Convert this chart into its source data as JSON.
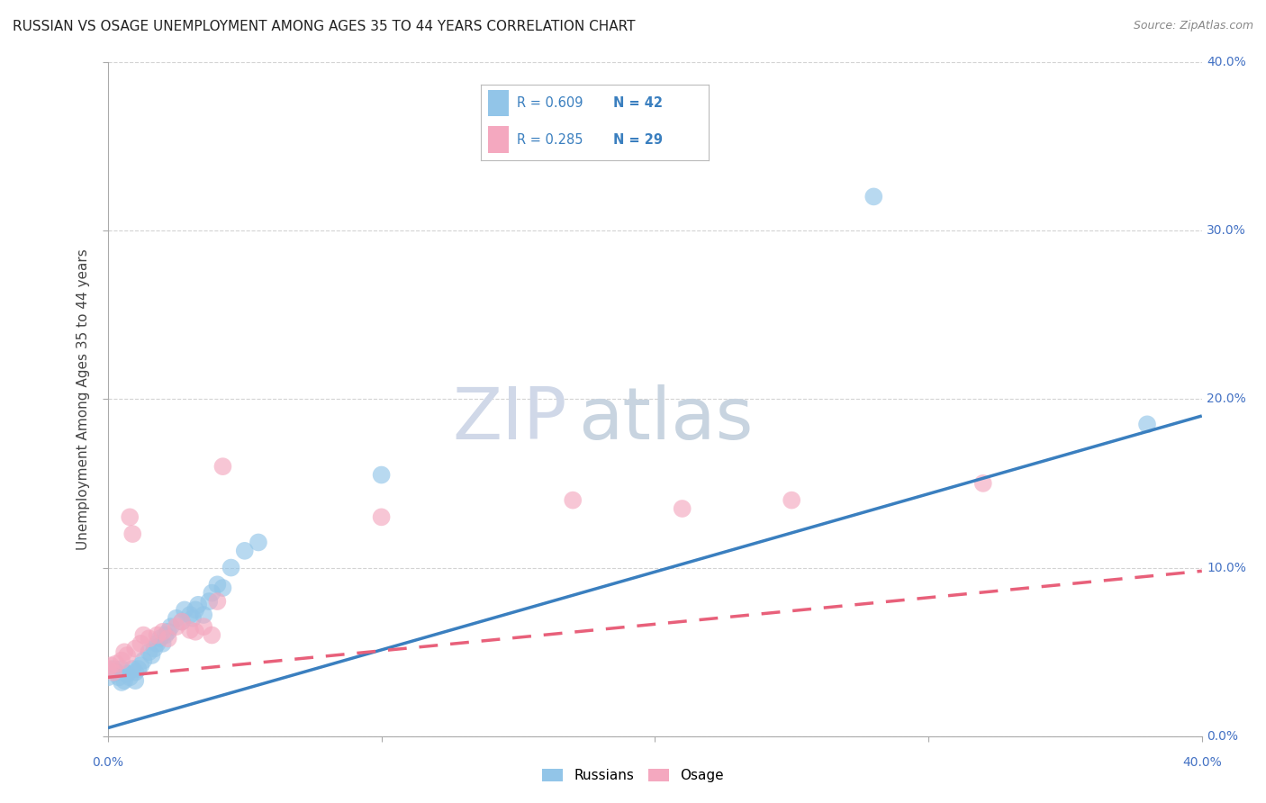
{
  "title": "RUSSIAN VS OSAGE UNEMPLOYMENT AMONG AGES 35 TO 44 YEARS CORRELATION CHART",
  "source": "Source: ZipAtlas.com",
  "ylabel": "Unemployment Among Ages 35 to 44 years",
  "watermark_zip": "ZIP",
  "watermark_atlas": "atlas",
  "legend_russians_R": "R = 0.609",
  "legend_russians_N": "N = 42",
  "legend_osage_R": "R = 0.285",
  "legend_osage_N": "N = 29",
  "russians_color": "#92c5e8",
  "osage_color": "#f4a8bf",
  "russians_line_color": "#3a7fbf",
  "osage_line_color": "#e8607a",
  "russians_x": [
    0.0,
    0.002,
    0.003,
    0.004,
    0.005,
    0.005,
    0.006,
    0.007,
    0.008,
    0.009,
    0.01,
    0.01,
    0.011,
    0.012,
    0.013,
    0.015,
    0.016,
    0.017,
    0.018,
    0.019,
    0.02,
    0.021,
    0.022,
    0.023,
    0.025,
    0.027,
    0.028,
    0.03,
    0.031,
    0.032,
    0.033,
    0.035,
    0.037,
    0.038,
    0.04,
    0.042,
    0.045,
    0.05,
    0.055,
    0.1,
    0.28,
    0.38
  ],
  "russians_y": [
    0.035,
    0.04,
    0.038,
    0.035,
    0.04,
    0.032,
    0.033,
    0.037,
    0.035,
    0.04,
    0.038,
    0.033,
    0.04,
    0.042,
    0.045,
    0.05,
    0.048,
    0.052,
    0.055,
    0.058,
    0.055,
    0.06,
    0.062,
    0.065,
    0.07,
    0.068,
    0.075,
    0.072,
    0.07,
    0.075,
    0.078,
    0.072,
    0.08,
    0.085,
    0.09,
    0.088,
    0.1,
    0.11,
    0.115,
    0.155,
    0.32,
    0.185
  ],
  "osage_x": [
    0.0,
    0.001,
    0.002,
    0.003,
    0.005,
    0.006,
    0.007,
    0.008,
    0.009,
    0.01,
    0.012,
    0.013,
    0.015,
    0.018,
    0.02,
    0.022,
    0.025,
    0.027,
    0.03,
    0.032,
    0.035,
    0.038,
    0.04,
    0.042,
    0.1,
    0.17,
    0.21,
    0.25,
    0.32
  ],
  "osage_y": [
    0.04,
    0.042,
    0.038,
    0.043,
    0.045,
    0.05,
    0.048,
    0.13,
    0.12,
    0.052,
    0.055,
    0.06,
    0.058,
    0.06,
    0.062,
    0.058,
    0.065,
    0.068,
    0.063,
    0.062,
    0.065,
    0.06,
    0.08,
    0.16,
    0.13,
    0.14,
    0.135,
    0.14,
    0.15
  ],
  "xlim": [
    0.0,
    0.4
  ],
  "ylim": [
    0.0,
    0.4
  ],
  "ytick_vals": [
    0.0,
    0.1,
    0.2,
    0.3,
    0.4
  ],
  "ytick_labels": [
    "0.0%",
    "10.0%",
    "20.0%",
    "30.0%",
    "40.0%"
  ],
  "background_color": "#ffffff",
  "grid_color": "#c8c8c8",
  "russians_line_start_y": 0.005,
  "russians_line_end_y": 0.19,
  "osage_line_start_y": 0.035,
  "osage_line_end_y": 0.098
}
